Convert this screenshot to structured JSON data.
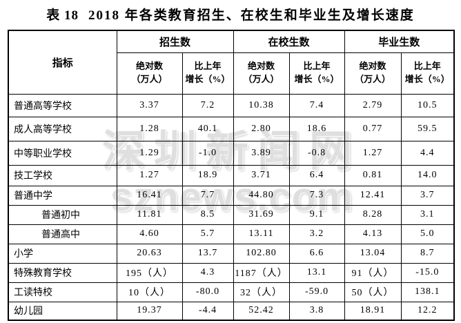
{
  "title": {
    "prefix": "表 18",
    "main": "2018 年各类教育招生、在校生和毕业生及增长速度"
  },
  "watermark": {
    "line1": "深圳新闻网",
    "line2": "sznews.com"
  },
  "table": {
    "indicator_header": "指标",
    "group_headers": [
      "招生数",
      "在校生数",
      "毕业生数"
    ],
    "sub_header": {
      "absolute_line1": "绝对数",
      "absolute_line2": "（万人）",
      "growth_line1": "比上年",
      "growth_line2": "增长（%）"
    },
    "rows": [
      {
        "indicator": "普通高等学校",
        "indent": false,
        "values": [
          "3.37",
          "7.2",
          "10.38",
          "7.4",
          "2.79",
          "10.5"
        ]
      },
      {
        "indicator": "成人高等学校",
        "indent": false,
        "values": [
          "1.28",
          "40.1",
          "2.80",
          "18.6",
          "0.77",
          "59.5"
        ]
      },
      {
        "indicator": "中等职业学校",
        "indent": false,
        "values": [
          "1.29",
          "-1.0",
          "3.89",
          "-0.8",
          "1.27",
          "4.4"
        ]
      },
      {
        "indicator": "技工学校",
        "indent": false,
        "values": [
          "1.27",
          "18.9",
          "3.71",
          "6.4",
          "0.81",
          "14.0"
        ]
      },
      {
        "indicator": "普通中学",
        "indent": false,
        "values": [
          "16.41",
          "7.7",
          "44.80",
          "7.3",
          "12.41",
          "3.7"
        ]
      },
      {
        "indicator": "普通初中",
        "indent": true,
        "values": [
          "11.81",
          "8.5",
          "31.69",
          "9.1",
          "8.28",
          "3.1"
        ]
      },
      {
        "indicator": "普通高中",
        "indent": true,
        "values": [
          "4.60",
          "5.7",
          "13.11",
          "3.2",
          "4.13",
          "5.0"
        ]
      },
      {
        "indicator": "小学",
        "indent": false,
        "values": [
          "20.63",
          "13.7",
          "102.80",
          "6.6",
          "13.04",
          "8.7"
        ]
      },
      {
        "indicator": "特殊教育学校",
        "indent": false,
        "values": [
          "195（人）",
          "4.3",
          "1187（人）",
          "13.1",
          "91（人）",
          "-15.0"
        ]
      },
      {
        "indicator": "工读特校",
        "indent": false,
        "values": [
          "10（人）",
          "-80.0",
          "32（人）",
          "-59.0",
          "50（人）",
          "138.1"
        ]
      },
      {
        "indicator": "幼儿园",
        "indent": false,
        "values": [
          "19.37",
          "-4.4",
          "52.42",
          "3.8",
          "18.91",
          "12.2"
        ]
      }
    ]
  }
}
